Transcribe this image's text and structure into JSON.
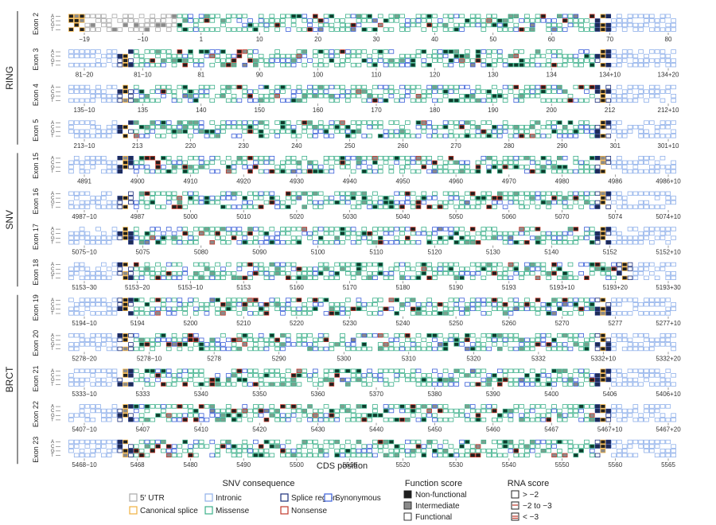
{
  "chart_data": {
    "type": "heatmap",
    "xlabel": "CDS position",
    "bases": [
      "A",
      "C",
      "G",
      "T"
    ],
    "domains": [
      {
        "label": "RING",
        "rows": [
          "Exon 2",
          "Exon 3",
          "Exon 4",
          "Exon 5"
        ]
      },
      {
        "label": "SNV",
        "rows": [
          "Exon 15",
          "Exon 16",
          "Exon 17",
          "Exon 18"
        ]
      },
      {
        "label": "BRCT",
        "rows": [
          "Exon 19",
          "Exon 20",
          "Exon 21",
          "Exon 22",
          "Exon 23"
        ]
      }
    ],
    "rows": [
      {
        "exon": "Exon 2",
        "ticks": [
          "−19",
          "−10",
          "1",
          "10",
          "20",
          "30",
          "40",
          "50",
          "60",
          "70",
          "80"
        ]
      },
      {
        "exon": "Exon 3",
        "ticks": [
          "81−20",
          "81−10",
          "81",
          "90",
          "100",
          "110",
          "120",
          "130",
          "134",
          "134+10",
          "134+20"
        ]
      },
      {
        "exon": "Exon 4",
        "ticks": [
          "135−10",
          "135",
          "140",
          "150",
          "160",
          "170",
          "180",
          "190",
          "200",
          "212",
          "212+10"
        ]
      },
      {
        "exon": "Exon 5",
        "ticks": [
          "213−10",
          "213",
          "220",
          "230",
          "240",
          "250",
          "260",
          "270",
          "280",
          "290",
          "301",
          "301+10"
        ]
      },
      {
        "exon": "Exon 15",
        "ticks": [
          "4891",
          "4900",
          "4910",
          "4920",
          "4930",
          "4940",
          "4950",
          "4960",
          "4970",
          "4980",
          "4986",
          "4986+10"
        ]
      },
      {
        "exon": "Exon 16",
        "ticks": [
          "4987−10",
          "4987",
          "5000",
          "5010",
          "5020",
          "5030",
          "5040",
          "5050",
          "5060",
          "5070",
          "5074",
          "5074+10"
        ]
      },
      {
        "exon": "Exon 17",
        "ticks": [
          "5075−10",
          "5075",
          "5080",
          "5090",
          "5100",
          "5110",
          "5120",
          "5130",
          "5140",
          "5152",
          "5152+10"
        ]
      },
      {
        "exon": "Exon 18",
        "ticks": [
          "5153−30",
          "5153−20",
          "5153−10",
          "5153",
          "5160",
          "5170",
          "5180",
          "5190",
          "5193",
          "5193+10",
          "5193+20",
          "5193+30"
        ]
      },
      {
        "exon": "Exon 19",
        "ticks": [
          "5194−10",
          "5194",
          "5200",
          "5210",
          "5220",
          "5230",
          "5240",
          "5250",
          "5260",
          "5270",
          "5277",
          "5277+10"
        ]
      },
      {
        "exon": "Exon 20",
        "ticks": [
          "5278−20",
          "5278−10",
          "5278",
          "5290",
          "5300",
          "5310",
          "5320",
          "5332",
          "5332+10",
          "5332+20"
        ]
      },
      {
        "exon": "Exon 21",
        "ticks": [
          "5333−10",
          "5333",
          "5340",
          "5350",
          "5360",
          "5370",
          "5380",
          "5390",
          "5400",
          "5406",
          "5406+10"
        ]
      },
      {
        "exon": "Exon 22",
        "ticks": [
          "5407−10",
          "5407",
          "5410",
          "5420",
          "5430",
          "5440",
          "5450",
          "5460",
          "5467",
          "5467+10",
          "5467+20"
        ]
      },
      {
        "exon": "Exon 23",
        "ticks": [
          "5468−10",
          "5468",
          "5480",
          "5490",
          "5500",
          "5510",
          "5520",
          "5530",
          "5540",
          "5550",
          "5560",
          "5565"
        ]
      }
    ],
    "legend": {
      "consequence_title": "SNV consequence",
      "consequence": [
        {
          "label": "5′ UTR",
          "color": "#a9a9a9"
        },
        {
          "label": "Canonical splice",
          "color": "#f0b040"
        },
        {
          "label": "Intronic",
          "color": "#8fb0ea"
        },
        {
          "label": "Missense",
          "color": "#3cb08a"
        },
        {
          "label": "Splice region",
          "color": "#1a2e7a"
        },
        {
          "label": "Nonsense",
          "color": "#c0392b"
        },
        {
          "label": "Synonymous",
          "color": "#3a5fd8"
        }
      ],
      "function_title": "Function score",
      "function": [
        {
          "label": "Non-functional",
          "fill": "#1f1f1f"
        },
        {
          "label": "Intermediate",
          "fill": "#8a8a8a"
        },
        {
          "label": "Functional",
          "fill": "#ffffff"
        }
      ],
      "rna_title": "RNA score",
      "rna": [
        {
          "label": "> −2",
          "style": "plain"
        },
        {
          "label": "−2 to −3",
          "style": "one-bar"
        },
        {
          "label": "< −3",
          "style": "two-bars"
        }
      ]
    }
  }
}
